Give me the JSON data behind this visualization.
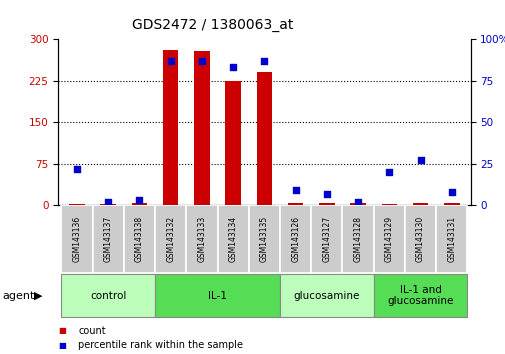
{
  "title": "GDS2472 / 1380063_at",
  "samples": [
    "GSM143136",
    "GSM143137",
    "GSM143138",
    "GSM143132",
    "GSM143133",
    "GSM143134",
    "GSM143135",
    "GSM143126",
    "GSM143127",
    "GSM143128",
    "GSM143129",
    "GSM143130",
    "GSM143131"
  ],
  "counts": [
    3,
    3,
    4,
    280,
    278,
    225,
    240,
    4,
    5,
    5,
    3,
    5,
    5
  ],
  "percentile": [
    22,
    2,
    3,
    87,
    87,
    83,
    87,
    9,
    7,
    2,
    20,
    27,
    8
  ],
  "groups": [
    {
      "label": "control",
      "start": 0,
      "end": 3,
      "color": "#bbffbb"
    },
    {
      "label": "IL-1",
      "start": 3,
      "end": 7,
      "color": "#55dd55"
    },
    {
      "label": "glucosamine",
      "start": 7,
      "end": 10,
      "color": "#bbffbb"
    },
    {
      "label": "IL-1 and\nglucosamine",
      "start": 10,
      "end": 13,
      "color": "#55dd55"
    }
  ],
  "count_color": "#cc0000",
  "percentile_color": "#0000cc",
  "ylim_left": [
    0,
    300
  ],
  "ylim_right": [
    0,
    100
  ],
  "yticks_left": [
    0,
    75,
    150,
    225,
    300
  ],
  "yticks_right": [
    0,
    25,
    50,
    75,
    100
  ],
  "bar_width": 0.5,
  "agent_label": "agent",
  "legend_count": "count",
  "legend_percentile": "percentile rank within the sample",
  "bg_color": "#ffffff",
  "plot_bg": "#ffffff",
  "sample_box_color": "#cccccc",
  "group_border_color": "#888888",
  "dotted_line_color": "black",
  "title_fontsize": 10,
  "sample_fontsize": 5.5,
  "group_fontsize": 7.5,
  "legend_fontsize": 7,
  "axis_fontsize": 7.5
}
